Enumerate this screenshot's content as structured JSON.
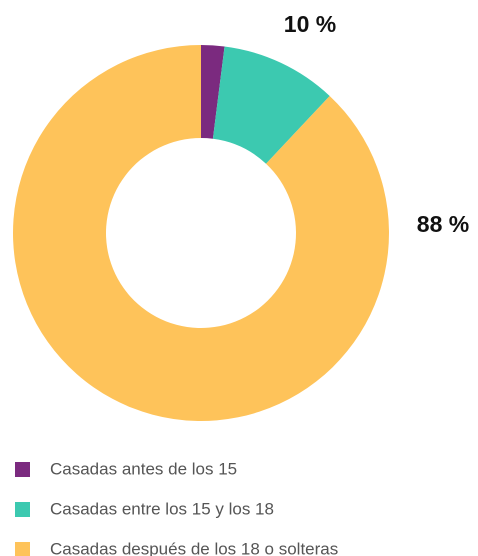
{
  "chart_data": {
    "type": "pie",
    "categories": [
      "Casadas antes de los 15",
      "Casadas entre los 15 y los 18",
      "Casadas después de los 18 o solteras"
    ],
    "values": [
      2,
      10,
      88
    ],
    "value_labels": [
      null,
      "10 %",
      "88 %"
    ],
    "colors": [
      "#7b2a7f",
      "#3cc9b0",
      "#fec35a"
    ],
    "donut": true
  }
}
